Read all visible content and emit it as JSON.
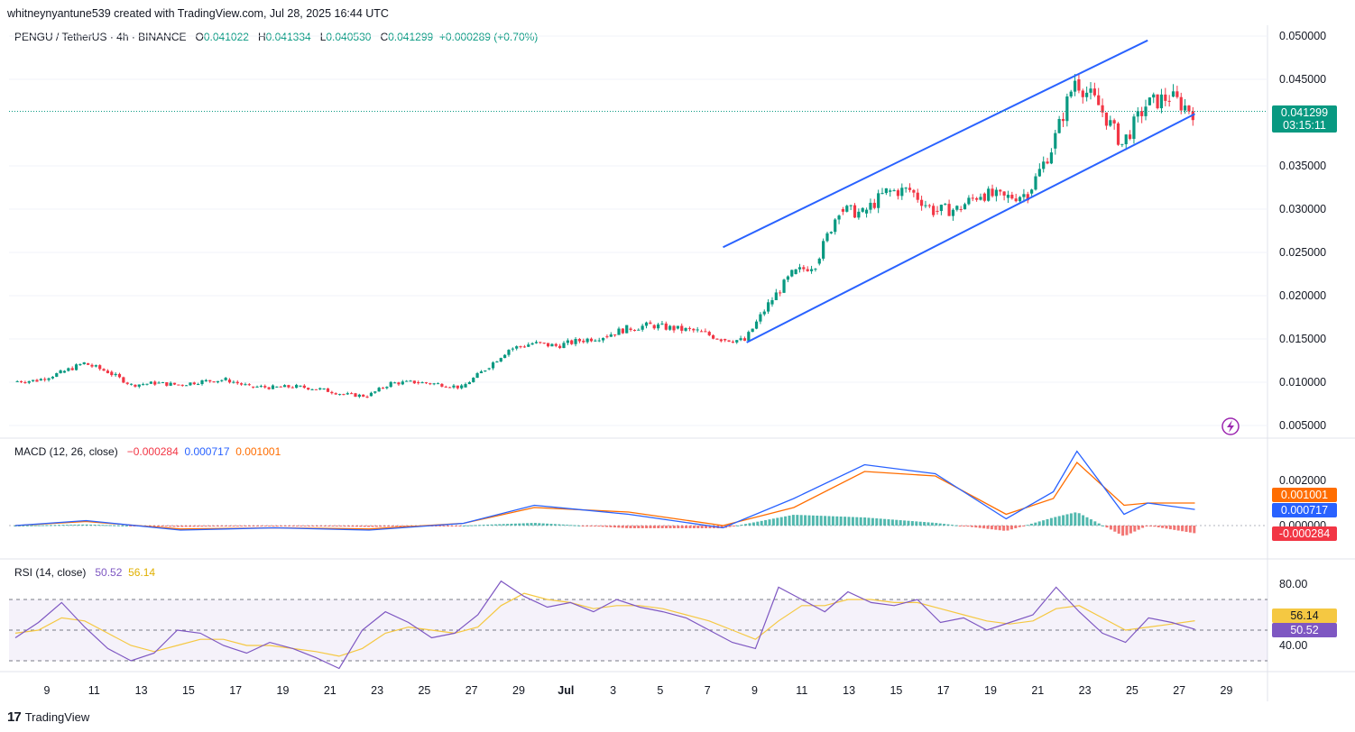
{
  "credit": "whitneynyantune539 created with TradingView.com, Jul 28, 2025 16:44 UTC",
  "footer": {
    "brand": "TradingView",
    "logo_text": "17"
  },
  "colors": {
    "up": "#089981",
    "down": "#f23645",
    "channel": "#2962ff",
    "macd": "#2962ff",
    "signal": "#ff6d00",
    "rsi": "#7e57c2",
    "rsi_ma": "#f5c842",
    "price_line": "#089981"
  },
  "main_legend": {
    "title": "PENGU / TetherUS · 4h · BINANCE",
    "o_label": "O",
    "o": "0.041022",
    "h_label": "H",
    "h": "0.041334",
    "l_label": "L",
    "l": "0.040530",
    "c_label": "C",
    "c": "0.041299",
    "change": "+0.000289 (+0.70%)"
  },
  "macd_legend": {
    "title": "MACD (12, 26, close)",
    "hist": "−0.000284",
    "macd": "0.000717",
    "signal": "0.001001"
  },
  "rsi_legend": {
    "title": "RSI (14, close)",
    "rsi": "50.52",
    "ma": "56.14"
  },
  "price_badge": {
    "price": "0.041299",
    "countdown": "03:15:11"
  },
  "macd_badges": {
    "signal": "0.001001",
    "macd": "0.000717",
    "hist": "-0.000284"
  },
  "rsi_badges": {
    "ma": "56.14",
    "rsi": "50.52"
  },
  "lightning_icon": "lightning-icon",
  "chart_data": [
    {
      "type": "candlestick",
      "title": "PENGU / TetherUS · 4h · BINANCE",
      "y_ticks": [
        "0.050000",
        "0.045000",
        "0.035000",
        "0.030000",
        "0.025000",
        "0.020000",
        "0.015000",
        "0.010000",
        "0.005000"
      ],
      "ylim": [
        0.005,
        0.05
      ],
      "x_ticks": [
        "9",
        "11",
        "13",
        "15",
        "17",
        "19",
        "21",
        "23",
        "25",
        "27",
        "29",
        "Jul",
        "3",
        "5",
        "7",
        "9",
        "11",
        "13",
        "15",
        "17",
        "19",
        "21",
        "23",
        "25",
        "27",
        "29"
      ],
      "close_path": [
        {
          "date": "Jun 8",
          "close": 0.0101
        },
        {
          "date": "Jun 9",
          "close": 0.0102
        },
        {
          "date": "Jun 10",
          "close": 0.0111
        },
        {
          "date": "Jun 11",
          "close": 0.0122
        },
        {
          "date": "Jun 12",
          "close": 0.0112
        },
        {
          "date": "Jun 13",
          "close": 0.0097
        },
        {
          "date": "Jun 14",
          "close": 0.0099
        },
        {
          "date": "Jun 15",
          "close": 0.0097
        },
        {
          "date": "Jun 16",
          "close": 0.0101
        },
        {
          "date": "Jun 17",
          "close": 0.0103
        },
        {
          "date": "Jun 18",
          "close": 0.0095
        },
        {
          "date": "Jun 19",
          "close": 0.0094
        },
        {
          "date": "Jun 20",
          "close": 0.0095
        },
        {
          "date": "Jun 21",
          "close": 0.0092
        },
        {
          "date": "Jun 22",
          "close": 0.0086
        },
        {
          "date": "Jun 23",
          "close": 0.0084
        },
        {
          "date": "Jun 24",
          "close": 0.0099
        },
        {
          "date": "Jun 25",
          "close": 0.01
        },
        {
          "date": "Jun 26",
          "close": 0.0098
        },
        {
          "date": "Jun 27",
          "close": 0.0094
        },
        {
          "date": "Jun 28",
          "close": 0.0115
        },
        {
          "date": "Jun 29",
          "close": 0.0138
        },
        {
          "date": "Jun 30",
          "close": 0.0145
        },
        {
          "date": "Jul 1",
          "close": 0.0142
        },
        {
          "date": "Jul 2",
          "close": 0.0148
        },
        {
          "date": "Jul 3",
          "close": 0.0153
        },
        {
          "date": "Jul 4",
          "close": 0.0162
        },
        {
          "date": "Jul 5",
          "close": 0.0166
        },
        {
          "date": "Jul 6",
          "close": 0.0162
        },
        {
          "date": "Jul 7",
          "close": 0.0159
        },
        {
          "date": "Jul 8",
          "close": 0.015
        },
        {
          "date": "Jul 9",
          "close": 0.0148
        },
        {
          "date": "Jul 10",
          "close": 0.019
        },
        {
          "date": "Jul 11",
          "close": 0.0225
        },
        {
          "date": "Jul 12",
          "close": 0.0237
        },
        {
          "date": "Jul 13",
          "close": 0.03
        },
        {
          "date": "Jul 14",
          "close": 0.0295
        },
        {
          "date": "Jul 15",
          "close": 0.032
        },
        {
          "date": "Jul 16",
          "close": 0.0322
        },
        {
          "date": "Jul 17",
          "close": 0.0298
        },
        {
          "date": "Jul 18",
          "close": 0.03
        },
        {
          "date": "Jul 19",
          "close": 0.0318
        },
        {
          "date": "Jul 20",
          "close": 0.0313
        },
        {
          "date": "Jul 21",
          "close": 0.0318
        },
        {
          "date": "Jul 22",
          "close": 0.037
        },
        {
          "date": "Jul 23",
          "close": 0.045
        },
        {
          "date": "Jul 24",
          "close": 0.042
        },
        {
          "date": "Jul 25",
          "close": 0.0375
        },
        {
          "date": "Jul 26",
          "close": 0.042
        },
        {
          "date": "Jul 27",
          "close": 0.043
        },
        {
          "date": "Jul 28",
          "close": 0.041299
        }
      ],
      "channel_upper": [
        {
          "date": "Jul 8",
          "price": 0.0256
        },
        {
          "date": "Jul 26",
          "price": 0.0495
        }
      ],
      "channel_lower": [
        {
          "date": "Jul 9",
          "price": 0.0146
        },
        {
          "date": "Jul 28",
          "price": 0.041
        }
      ],
      "last_price": 0.041299
    },
    {
      "type": "line",
      "title": "MACD (12, 26, close)",
      "y_ticks": [
        "0.002000",
        "0.000000"
      ],
      "series": [
        {
          "name": "MACD",
          "points": [
            {
              "date": "Jun 8",
              "v": 0.0
            },
            {
              "date": "Jun 11",
              "v": 0.00022
            },
            {
              "date": "Jun 15",
              "v": -0.0002
            },
            {
              "date": "Jun 19",
              "v": -0.0001
            },
            {
              "date": "Jun 23",
              "v": -0.0002
            },
            {
              "date": "Jun 27",
              "v": 0.0001
            },
            {
              "date": "Jun 30",
              "v": 0.0009
            },
            {
              "date": "Jul 4",
              "v": 0.0005
            },
            {
              "date": "Jul 8",
              "v": -0.0001
            },
            {
              "date": "Jul 11",
              "v": 0.0012
            },
            {
              "date": "Jul 14",
              "v": 0.0027
            },
            {
              "date": "Jul 17",
              "v": 0.0023
            },
            {
              "date": "Jul 20",
              "v": 0.0003
            },
            {
              "date": "Jul 22",
              "v": 0.0015
            },
            {
              "date": "Jul 23",
              "v": 0.0033
            },
            {
              "date": "Jul 25",
              "v": 0.0005
            },
            {
              "date": "Jul 26",
              "v": 0.001
            },
            {
              "date": "Jul 28",
              "v": 0.000717
            }
          ]
        },
        {
          "name": "Signal",
          "points": [
            {
              "date": "Jun 8",
              "v": 0.0
            },
            {
              "date": "Jun 11",
              "v": 0.00018
            },
            {
              "date": "Jun 15",
              "v": -0.00015
            },
            {
              "date": "Jun 19",
              "v": -0.0001
            },
            {
              "date": "Jun 23",
              "v": -0.00015
            },
            {
              "date": "Jun 27",
              "v": 0.0001
            },
            {
              "date": "Jun 30",
              "v": 0.0008
            },
            {
              "date": "Jul 4",
              "v": 0.0006
            },
            {
              "date": "Jul 8",
              "v": 0.0
            },
            {
              "date": "Jul 11",
              "v": 0.0008
            },
            {
              "date": "Jul 14",
              "v": 0.0024
            },
            {
              "date": "Jul 17",
              "v": 0.0022
            },
            {
              "date": "Jul 20",
              "v": 0.0005
            },
            {
              "date": "Jul 22",
              "v": 0.0012
            },
            {
              "date": "Jul 23",
              "v": 0.0028
            },
            {
              "date": "Jul 25",
              "v": 0.0009
            },
            {
              "date": "Jul 26",
              "v": 0.001
            },
            {
              "date": "Jul 28",
              "v": 0.001001
            }
          ]
        }
      ],
      "histogram_last": -0.000284
    },
    {
      "type": "line",
      "title": "RSI (14, close)",
      "y_ticks": [
        "80.00",
        "40.00"
      ],
      "bands": [
        70,
        50,
        30
      ],
      "series": [
        {
          "name": "RSI",
          "values": [
            45,
            55,
            68,
            52,
            38,
            30,
            35,
            50,
            48,
            40,
            35,
            42,
            38,
            32,
            25,
            50,
            62,
            55,
            45,
            48,
            60,
            82,
            72,
            65,
            68,
            62,
            70,
            65,
            62,
            58,
            50,
            42,
            38,
            78,
            70,
            62,
            75,
            68,
            66,
            70,
            55,
            58,
            50,
            55,
            60,
            78,
            62,
            48,
            42,
            58,
            55,
            50.52
          ]
        },
        {
          "name": "RSI MA",
          "values": [
            48,
            50,
            58,
            56,
            48,
            40,
            36,
            40,
            44,
            44,
            40,
            40,
            38,
            36,
            33,
            38,
            48,
            52,
            50,
            48,
            52,
            66,
            74,
            70,
            68,
            64,
            66,
            66,
            64,
            60,
            56,
            50,
            44,
            56,
            66,
            66,
            70,
            70,
            68,
            68,
            64,
            60,
            56,
            54,
            56,
            64,
            66,
            58,
            50,
            52,
            54,
            56.14
          ]
        }
      ]
    }
  ]
}
